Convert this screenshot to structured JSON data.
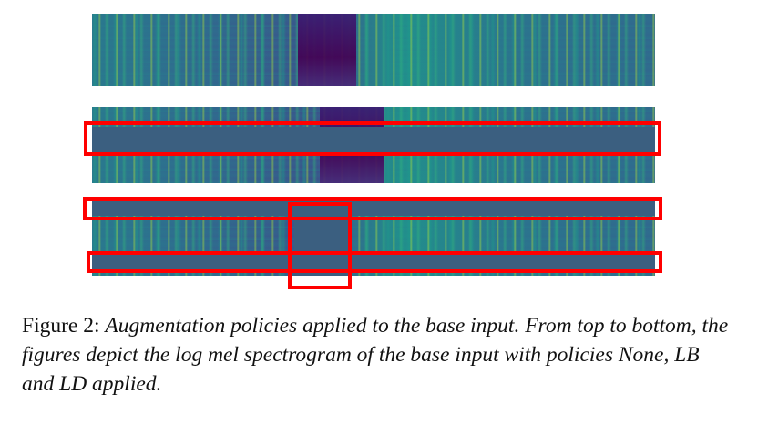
{
  "figure": {
    "panels": [
      {
        "policy": "None"
      },
      {
        "policy": "LB"
      },
      {
        "policy": "LD"
      }
    ],
    "colors": {
      "highlight_box": "#ff0000",
      "mask_fill": "#3b5f80",
      "spectrogram_palette": [
        "#440154",
        "#3b528b",
        "#21918c",
        "#5ec962",
        "#fde725"
      ]
    }
  },
  "caption": {
    "label": "Figure 2:",
    "text": "Augmentation policies applied to the base input. From top to bottom, the figures depict the log mel spectrogram of the base input with policies None, LB and LD applied."
  }
}
